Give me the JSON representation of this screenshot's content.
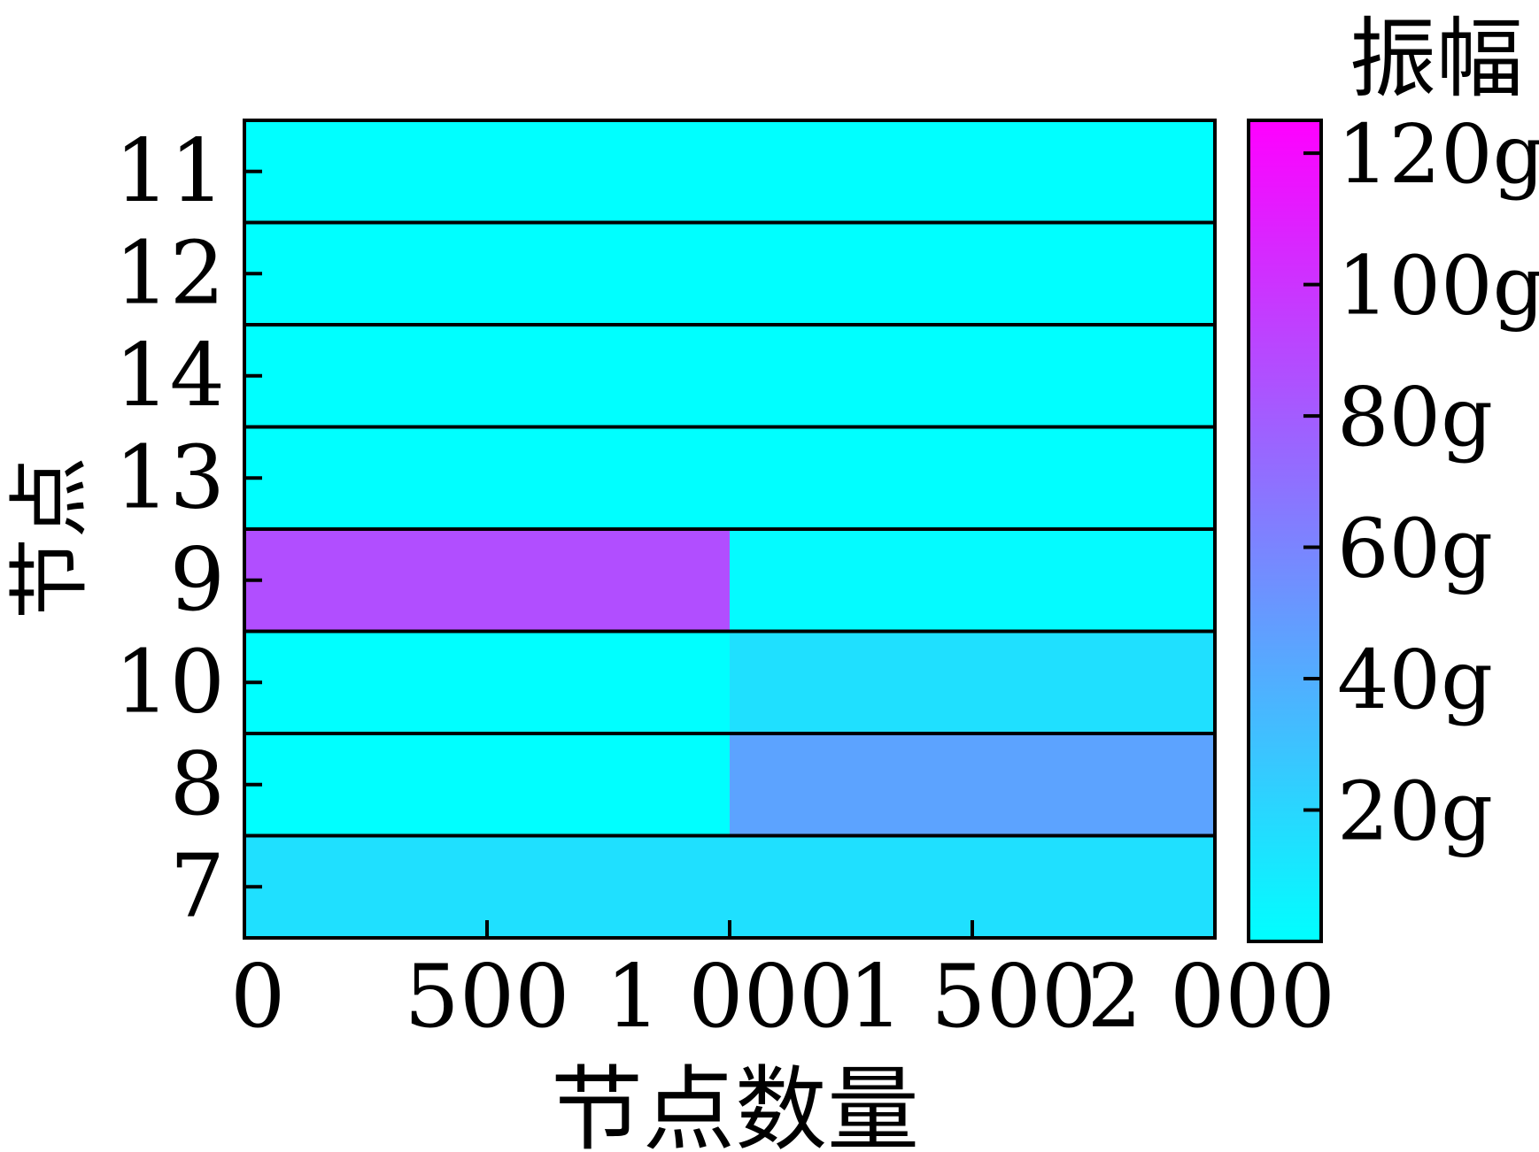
{
  "chart_data": {
    "type": "heatmap",
    "xlabel": "节点数量",
    "ylabel": "节点",
    "colorbar_title": "振幅",
    "x_ticks": [
      0,
      500,
      1000,
      1500,
      2000
    ],
    "x_tick_labels": [
      "0",
      "500",
      "1 000",
      "1 500",
      "2 000"
    ],
    "xlim": [
      0,
      2000
    ],
    "y_categories_top_to_bottom": [
      "11",
      "12",
      "14",
      "13",
      "9",
      "10",
      "8",
      "7"
    ],
    "colorbar_ticks": [
      20,
      40,
      60,
      80,
      100,
      120
    ],
    "colorbar_tick_labels": [
      "20g",
      "40g",
      "60g",
      "80g",
      "100g",
      "120g"
    ],
    "colorbar_range": [
      0,
      125
    ],
    "colormap": [
      "#00ffff",
      "#ff00ff"
    ],
    "series": [
      {
        "name": "11",
        "segments": [
          {
            "x_start": 0,
            "x_end": 2000,
            "amplitude": 0
          }
        ]
      },
      {
        "name": "12",
        "segments": [
          {
            "x_start": 0,
            "x_end": 2000,
            "amplitude": 0
          }
        ]
      },
      {
        "name": "14",
        "segments": [
          {
            "x_start": 0,
            "x_end": 2000,
            "amplitude": 0
          }
        ]
      },
      {
        "name": "13",
        "segments": [
          {
            "x_start": 0,
            "x_end": 2000,
            "amplitude": 0
          }
        ]
      },
      {
        "name": "9",
        "segments": [
          {
            "x_start": 0,
            "x_end": 1000,
            "amplitude": 87
          },
          {
            "x_start": 1000,
            "x_end": 2000,
            "amplitude": 2
          }
        ]
      },
      {
        "name": "10",
        "segments": [
          {
            "x_start": 0,
            "x_end": 1000,
            "amplitude": 0
          },
          {
            "x_start": 1000,
            "x_end": 2000,
            "amplitude": 15
          }
        ]
      },
      {
        "name": "8",
        "segments": [
          {
            "x_start": 0,
            "x_end": 1000,
            "amplitude": 0
          },
          {
            "x_start": 1000,
            "x_end": 2000,
            "amplitude": 45
          }
        ]
      },
      {
        "name": "7",
        "segments": [
          {
            "x_start": 0,
            "x_end": 2000,
            "amplitude": 15
          }
        ]
      }
    ]
  }
}
